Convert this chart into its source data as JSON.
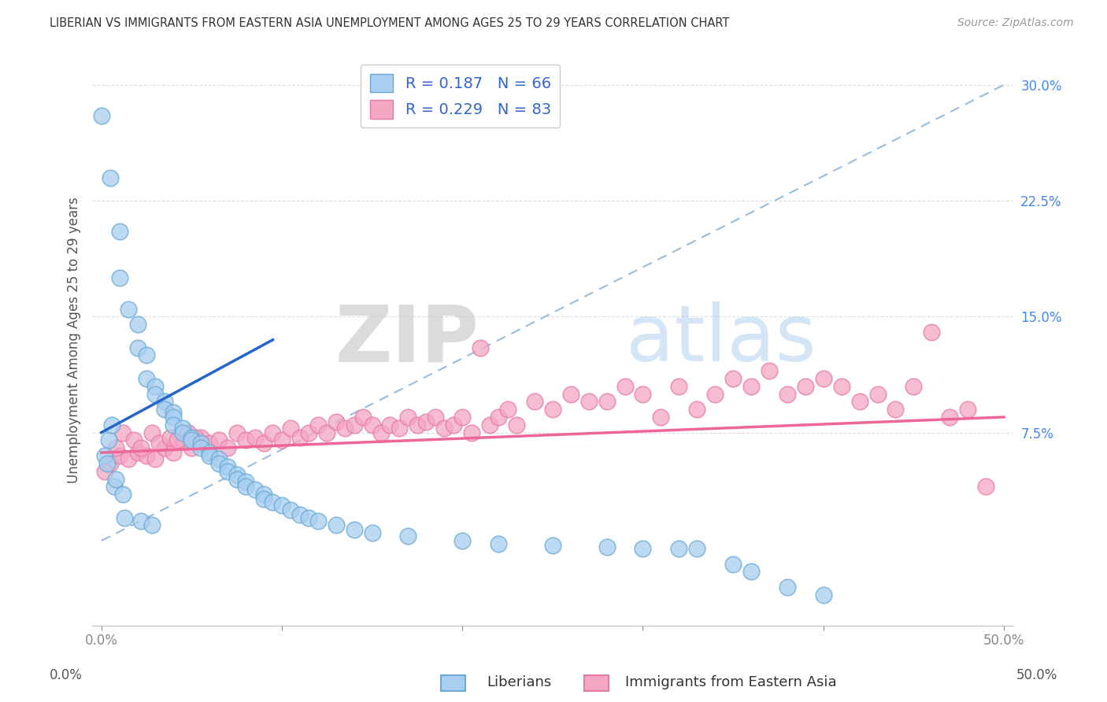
{
  "title": "LIBERIAN VS IMMIGRANTS FROM EASTERN ASIA UNEMPLOYMENT AMONG AGES 25 TO 29 YEARS CORRELATION CHART",
  "source": "Source: ZipAtlas.com",
  "ylabel": "Unemployment Among Ages 25 to 29 years",
  "xlim": [
    -0.5,
    50.5
  ],
  "ylim": [
    -5.0,
    32.0
  ],
  "xticks": [
    0,
    10,
    20,
    30,
    40,
    50
  ],
  "xticklabels": [
    "0.0%",
    "",
    "",
    "",
    "",
    "50.0%"
  ],
  "yticks": [
    7.5,
    15.0,
    22.5,
    30.0
  ],
  "yticklabels": [
    "7.5%",
    "15.0%",
    "22.5%",
    "30.0%"
  ],
  "R_liberian": 0.187,
  "N_liberian": 66,
  "R_eastern_asia": 0.229,
  "N_eastern_asia": 83,
  "liberian_color": "#a8cef0",
  "liberian_edge_color": "#6aaad4",
  "eastern_asia_color": "#f4a7c3",
  "eastern_asia_edge_color": "#e87aaa",
  "liberian_line_color": "#2266cc",
  "eastern_asia_line_color": "#ee6699",
  "dashed_line_color": "#99bbdd",
  "background_color": "#ffffff",
  "watermark_zip": "ZIP",
  "watermark_atlas": "atlas",
  "legend_label_liberian": "Liberians",
  "legend_label_eastern_asia": "Immigrants from Eastern Asia",
  "liberian_x": [
    0.0,
    0.5,
    1.0,
    1.0,
    1.5,
    2.0,
    2.0,
    2.5,
    2.5,
    3.0,
    3.0,
    3.5,
    3.5,
    4.0,
    4.0,
    4.0,
    4.5,
    4.5,
    5.0,
    5.0,
    5.5,
    5.5,
    6.0,
    6.0,
    6.5,
    6.5,
    7.0,
    7.0,
    7.5,
    7.5,
    8.0,
    8.0,
    8.5,
    9.0,
    9.0,
    9.5,
    10.0,
    10.5,
    11.0,
    11.5,
    12.0,
    13.0,
    14.0,
    15.0,
    17.0,
    20.0,
    22.0,
    25.0,
    28.0,
    30.0,
    32.0,
    33.0,
    35.0,
    36.0,
    38.0,
    40.0,
    0.2,
    0.3,
    0.4,
    0.6,
    0.7,
    0.8,
    1.2,
    1.3,
    2.2,
    2.8
  ],
  "liberian_y": [
    28.0,
    24.0,
    20.5,
    17.5,
    15.5,
    14.5,
    13.0,
    12.5,
    11.0,
    10.5,
    10.0,
    9.5,
    9.0,
    8.8,
    8.5,
    8.0,
    7.8,
    7.5,
    7.2,
    7.0,
    6.8,
    6.5,
    6.2,
    6.0,
    5.8,
    5.5,
    5.3,
    5.0,
    4.8,
    4.5,
    4.3,
    4.0,
    3.8,
    3.5,
    3.2,
    3.0,
    2.8,
    2.5,
    2.2,
    2.0,
    1.8,
    1.5,
    1.2,
    1.0,
    0.8,
    0.5,
    0.3,
    0.2,
    0.1,
    0.0,
    0.0,
    0.0,
    -1.0,
    -1.5,
    -2.5,
    -3.0,
    6.0,
    5.5,
    7.0,
    8.0,
    4.0,
    4.5,
    3.5,
    2.0,
    1.8,
    1.5
  ],
  "eastern_x": [
    0.5,
    1.0,
    1.5,
    2.0,
    2.5,
    3.0,
    3.5,
    4.0,
    4.5,
    5.0,
    5.5,
    6.0,
    6.5,
    7.0,
    7.5,
    8.0,
    8.5,
    9.0,
    9.5,
    10.0,
    10.5,
    11.0,
    11.5,
    12.0,
    12.5,
    13.0,
    13.5,
    14.0,
    14.5,
    15.0,
    15.5,
    16.0,
    16.5,
    17.0,
    17.5,
    18.0,
    18.5,
    19.0,
    19.5,
    20.0,
    20.5,
    21.0,
    21.5,
    22.0,
    22.5,
    23.0,
    24.0,
    25.0,
    26.0,
    27.0,
    28.0,
    29.0,
    30.0,
    31.0,
    32.0,
    33.0,
    34.0,
    35.0,
    36.0,
    37.0,
    38.0,
    39.0,
    40.0,
    41.0,
    42.0,
    43.0,
    44.0,
    45.0,
    46.0,
    47.0,
    48.0,
    49.0,
    0.2,
    0.8,
    1.2,
    1.8,
    2.2,
    2.8,
    3.2,
    3.8,
    4.2,
    4.8,
    5.2
  ],
  "eastern_y": [
    5.5,
    6.0,
    5.8,
    6.2,
    6.0,
    5.8,
    6.5,
    6.2,
    7.0,
    6.5,
    7.2,
    6.8,
    7.0,
    6.5,
    7.5,
    7.0,
    7.2,
    6.8,
    7.5,
    7.0,
    7.8,
    7.2,
    7.5,
    8.0,
    7.5,
    8.2,
    7.8,
    8.0,
    8.5,
    8.0,
    7.5,
    8.0,
    7.8,
    8.5,
    8.0,
    8.2,
    8.5,
    7.8,
    8.0,
    8.5,
    7.5,
    13.0,
    8.0,
    8.5,
    9.0,
    8.0,
    9.5,
    9.0,
    10.0,
    9.5,
    9.5,
    10.5,
    10.0,
    8.5,
    10.5,
    9.0,
    10.0,
    11.0,
    10.5,
    11.5,
    10.0,
    10.5,
    11.0,
    10.5,
    9.5,
    10.0,
    9.0,
    10.5,
    14.0,
    8.5,
    9.0,
    4.0,
    5.0,
    6.5,
    7.5,
    7.0,
    6.5,
    7.5,
    6.8,
    7.2,
    7.0,
    7.5,
    7.2
  ],
  "lib_line_x1": 0.0,
  "lib_line_y1": 7.5,
  "lib_line_x2": 9.5,
  "lib_line_y2": 13.5,
  "ea_line_x1": 0.0,
  "ea_line_y1": 6.2,
  "ea_line_x2": 50.0,
  "ea_line_y2": 8.5,
  "dash_x1": 0.0,
  "dash_y1": 0.5,
  "dash_x2": 50.0,
  "dash_y2": 30.0
}
